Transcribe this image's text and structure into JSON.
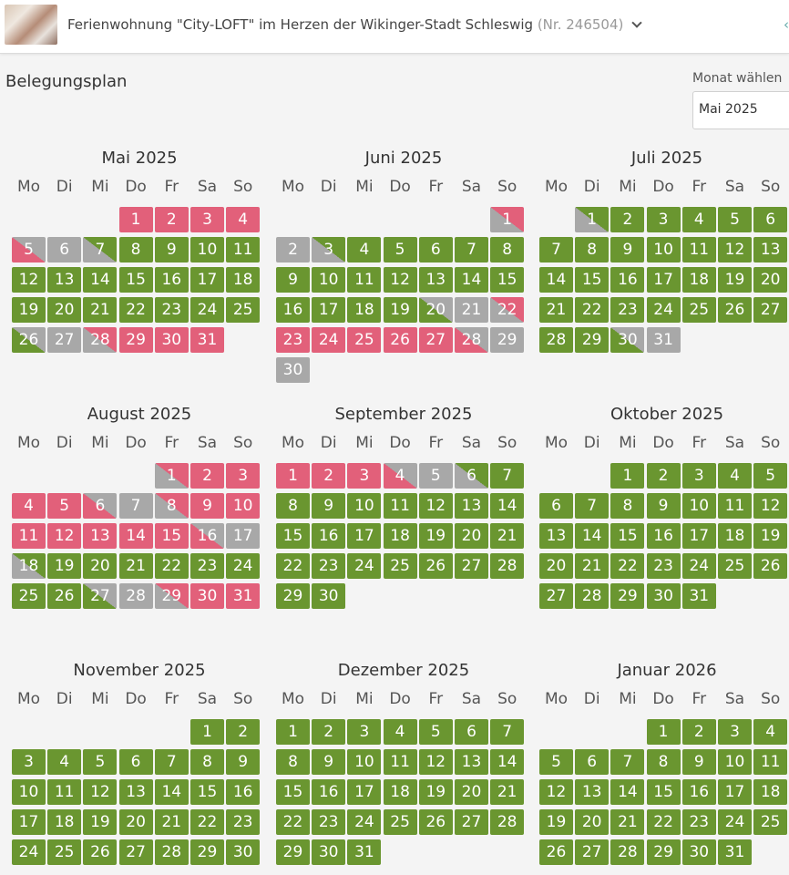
{
  "header": {
    "title": "Ferienwohnung \"City-LOFT\" im Herzen der Wikinger-Stadt Schleswig",
    "number": "(Nr. 246504)"
  },
  "page": {
    "heading": "Belegungsplan",
    "month_select_label": "Monat wählen",
    "month_select_value": "Mai 2025"
  },
  "weekdays": [
    "Mo",
    "Di",
    "Mi",
    "Do",
    "Fr",
    "Sa",
    "So"
  ],
  "colors": {
    "free": "#6a9630",
    "booked": "#e2607a",
    "unavailable": "#a8a8a8"
  },
  "legend_codes": {
    "g": "free",
    "r": "booked",
    "x": "unavailable",
    "a-b": "diagonal split: a lower-left, b upper-right"
  },
  "months": [
    {
      "title": "Mai 2025",
      "start_col": 3,
      "days": [
        "r",
        "r",
        "r",
        "r",
        "r-x",
        "x",
        "x-g",
        "g",
        "g",
        "g",
        "g",
        "g",
        "g",
        "g",
        "g",
        "g",
        "g",
        "g",
        "g",
        "g",
        "g",
        "g",
        "g",
        "g",
        "g",
        "g-x",
        "x",
        "x-r",
        "r",
        "r",
        "r"
      ]
    },
    {
      "title": "Juni 2025",
      "start_col": 6,
      "days": [
        "x-r",
        "x",
        "x-g",
        "g",
        "g",
        "g",
        "g",
        "g",
        "g",
        "g",
        "g",
        "g",
        "g",
        "g",
        "g",
        "g",
        "g",
        "g",
        "g",
        "g-x",
        "x",
        "x-r",
        "r",
        "r",
        "r",
        "r",
        "r",
        "r-x",
        "x",
        "x"
      ]
    },
    {
      "title": "Juli 2025",
      "start_col": 1,
      "days": [
        "x-g",
        "g",
        "g",
        "g",
        "g",
        "g",
        "g",
        "g",
        "g",
        "g",
        "g",
        "g",
        "g",
        "g",
        "g",
        "g",
        "g",
        "g",
        "g",
        "g",
        "g",
        "g",
        "g",
        "g",
        "g",
        "g",
        "g",
        "g",
        "g",
        "g-x",
        "x"
      ]
    },
    {
      "title": "August 2025",
      "start_col": 4,
      "days": [
        "x-r",
        "r",
        "r",
        "r",
        "r",
        "r-x",
        "x",
        "x-r",
        "r",
        "r",
        "r",
        "r",
        "r",
        "r",
        "r",
        "r-x",
        "x",
        "x-g",
        "g",
        "g",
        "g",
        "g",
        "g",
        "g",
        "g",
        "g",
        "g-x",
        "x",
        "x-r",
        "r",
        "r"
      ]
    },
    {
      "title": "September 2025",
      "start_col": 0,
      "days": [
        "r",
        "r",
        "r",
        "r-x",
        "x",
        "x-g",
        "g",
        "g",
        "g",
        "g",
        "g",
        "g",
        "g",
        "g",
        "g",
        "g",
        "g",
        "g",
        "g",
        "g",
        "g",
        "g",
        "g",
        "g",
        "g",
        "g",
        "g",
        "g",
        "g",
        "g"
      ]
    },
    {
      "title": "Oktober 2025",
      "start_col": 2,
      "days": [
        "g",
        "g",
        "g",
        "g",
        "g",
        "g",
        "g",
        "g",
        "g",
        "g",
        "g",
        "g",
        "g",
        "g",
        "g",
        "g",
        "g",
        "g",
        "g",
        "g",
        "g",
        "g",
        "g",
        "g",
        "g",
        "g",
        "g",
        "g",
        "g",
        "g",
        "g"
      ]
    },
    {
      "title": "November 2025",
      "start_col": 5,
      "days": [
        "g",
        "g",
        "g",
        "g",
        "g",
        "g",
        "g",
        "g",
        "g",
        "g",
        "g",
        "g",
        "g",
        "g",
        "g",
        "g",
        "g",
        "g",
        "g",
        "g",
        "g",
        "g",
        "g",
        "g",
        "g",
        "g",
        "g",
        "g",
        "g",
        "g"
      ]
    },
    {
      "title": "Dezember 2025",
      "start_col": 0,
      "days": [
        "g",
        "g",
        "g",
        "g",
        "g",
        "g",
        "g",
        "g",
        "g",
        "g",
        "g",
        "g",
        "g",
        "g",
        "g",
        "g",
        "g",
        "g",
        "g",
        "g",
        "g",
        "g",
        "g",
        "g",
        "g",
        "g",
        "g",
        "g",
        "g",
        "g",
        "g"
      ]
    },
    {
      "title": "Januar 2026",
      "start_col": 3,
      "days": [
        "g",
        "g",
        "g",
        "g",
        "g",
        "g",
        "g",
        "g",
        "g",
        "g",
        "g",
        "g",
        "g",
        "g",
        "g",
        "g",
        "g",
        "g",
        "g",
        "g",
        "g",
        "g",
        "g",
        "g",
        "g",
        "g",
        "g",
        "g",
        "g",
        "g",
        "g"
      ]
    }
  ]
}
